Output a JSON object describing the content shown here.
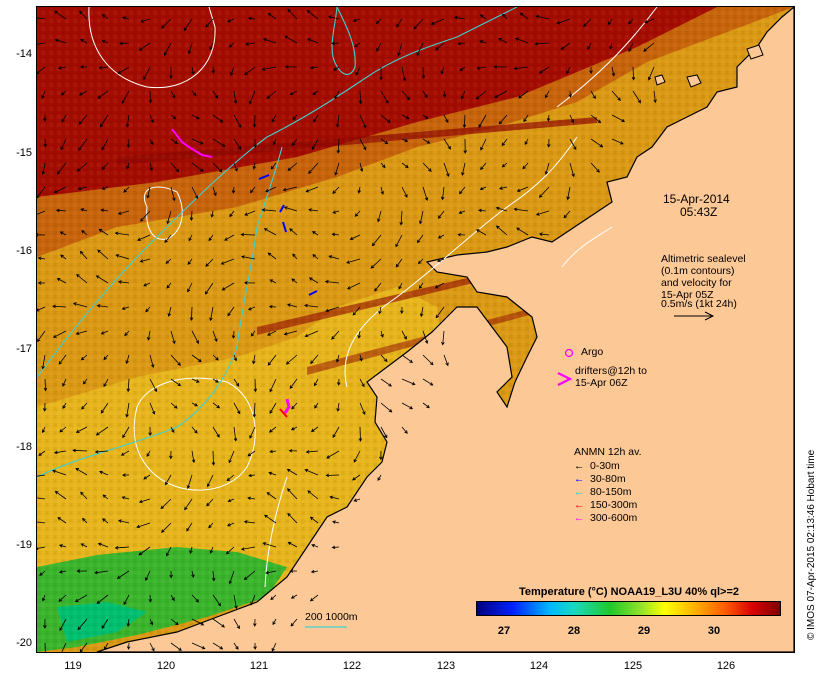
{
  "map": {
    "y_axis_labels": [
      "-14",
      "-15",
      "-16",
      "-17",
      "-18",
      "-19",
      "-20"
    ],
    "x_axis_labels": [
      "119",
      "120",
      "121",
      "122",
      "123",
      "124",
      "125",
      "126"
    ],
    "date": "15-Apr-2014",
    "time": "05:43Z",
    "altimetry_note": [
      "Altimetric sealevel",
      "(0.1m contours)",
      "and velocity for",
      "15-Apr 05Z",
      "0.5m/s (1kt 24h)"
    ],
    "argo_label": "Argo",
    "drifters_label": [
      "drifters@12h to",
      "15-Apr 06Z"
    ],
    "depth_contour_label": "200  1000m",
    "anmn_legend": {
      "title": "ANMN 12h av.",
      "items": [
        {
          "label": "0-30m",
          "color": "#000000"
        },
        {
          "label": "30-80m",
          "color": "#0000ff"
        },
        {
          "label": "80-150m",
          "color": "#00d8d8"
        },
        {
          "label": "150-300m",
          "color": "#ff0000"
        },
        {
          "label": "300-600m",
          "color": "#ff00ff"
        }
      ]
    },
    "colorbar": {
      "title": "Temperature (°C) NOAA19_L3U 40% ql>=2",
      "ticks": [
        "27",
        "28",
        "29",
        "30"
      ]
    },
    "credit": "© IMOS 07-Apr-2015 02:13:46 Hobart time",
    "colors": {
      "land": "#fcc896",
      "warm_sst": "#a40a00",
      "mid_sst": "#d77a10",
      "cool_sst": "#e4b018",
      "coolest_sst": "#2fb02a",
      "depth_200m": "#40d0d0",
      "altimetry_contours": "#ffffff",
      "argo_marker": "#ff00ff"
    }
  }
}
